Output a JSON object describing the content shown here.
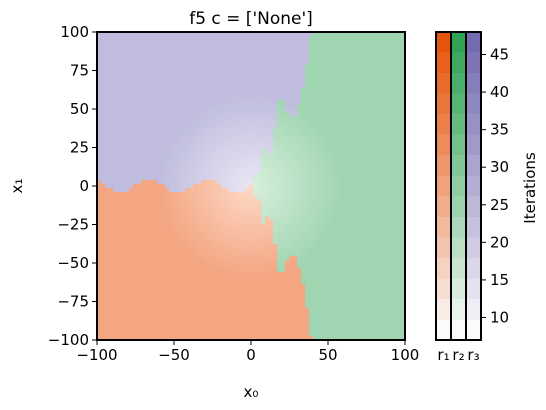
{
  "chart_data": {
    "type": "heatmap",
    "title": "f5 c = ['None']",
    "xlabel": "x₀",
    "ylabel": "x₁",
    "xlim": [
      -100,
      100
    ],
    "ylim": [
      -100,
      100
    ],
    "xticks": [
      -100,
      -50,
      0,
      50,
      100
    ],
    "yticks": [
      -100,
      -75,
      -50,
      -25,
      0,
      25,
      50,
      75,
      100
    ],
    "grid": false,
    "description_regions": {
      "r1": "lower-left basin (orange)",
      "r2": "right basin (green)",
      "r3": "upper-left basin (purple)"
    },
    "regions": [
      {
        "name": "r₁",
        "color": "#e6550d"
      },
      {
        "name": "r₂",
        "color": "#31a354"
      },
      {
        "name": "r₃",
        "color": "#756bb1"
      }
    ],
    "colorbar": {
      "label": "Iterations",
      "range": [
        7,
        48
      ],
      "ticks": [
        10,
        15,
        20,
        25,
        30,
        35,
        40,
        45
      ]
    }
  }
}
